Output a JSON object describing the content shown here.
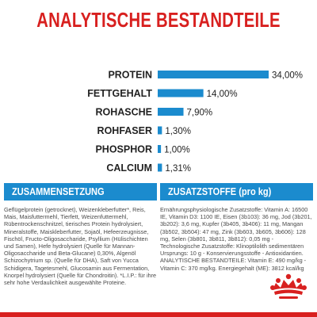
{
  "title": "ANALYTISCHE BESTANDTEILE",
  "colors": {
    "accent_red": "#d8201f",
    "bar_blue": "#1b8bce",
    "label_dark": "#222222",
    "body_text": "#4a4a4a"
  },
  "chart_data": {
    "type": "bar",
    "orientation": "horizontal",
    "categories": [
      "PROTEIN",
      "FETTGEHALT",
      "ROHASCHE",
      "ROHFASER",
      "PHOSPHOR",
      "CALCIUM"
    ],
    "values": [
      34.0,
      14.0,
      7.9,
      1.3,
      1.0,
      1.31
    ],
    "value_labels": [
      "34,00%",
      "14,00%",
      "7,90%",
      "1,30%",
      "1,00%",
      "1,31%"
    ],
    "xlim": [
      0,
      34
    ],
    "grid": false,
    "legend": "none"
  },
  "left_panel": {
    "header": "ZUSAMMENSETZUNG",
    "body": "Geflügelprotein (getrocknet), Weizenkleberfutter*, Reis, Mais, Maisfuttermehl, Tierfett, Weizenfuttermehl, Rübentrockenschnitzel, tierisches Protein hydrolysiert, Mineralstoffe, Maiskleberfutter, Sojaöl, Hefeerzeugnisse, Fischöl, Fructo-Oligosaccharide, Psyllium (Hülischichten und Samen), Hefe hydrolysiert (Quelle für Mannan-Oligosaccharide und Beta-Glucane) 0,30%, Algenöl Schizochytrium sp. (Quelle für DHA), Saft von Yucca Schidigera, Tagetesmehl, Glucosamin aus Fermentation, Knorpel hydrolysiert (Quelle für Chondroitin). *L.I.P.: für ihre sehr hohe Verdaulichkeit ausgewählte Proteine."
  },
  "right_panel": {
    "header": "ZUSATZSTOFFE (pro kg)",
    "body": "Ernährungsphysiologische Zusatzstoffe: Vitamin A: 16500 IE, Vitamin D3: 1100 IE, Eisen (3b103): 36 mg, Jod (3b201, 3b202): 3,6 mg, Kupfer (3b405, 3b406): 11 mg, Mangan (3b502, 3b504): 47 mg, Zink (3b603, 3b605, 3b606): 128 mg, Selen (3b801, 3b811, 3b812): 0,05 mg - Technologische Zusatzstoffe: Klinoptilolith sedimentären Ursprungs: 10 g - Konservierungsstoffe - Antioxidantien. ANALYTISCHE BESTANDTEILE: Vitamin E: 490 mg/kg - Vitamin C: 370 mg/kg. Energiegehalt (ME): 3812 kcal/kg"
  },
  "logo": {
    "icon": "royal-canin-crown-icon"
  }
}
